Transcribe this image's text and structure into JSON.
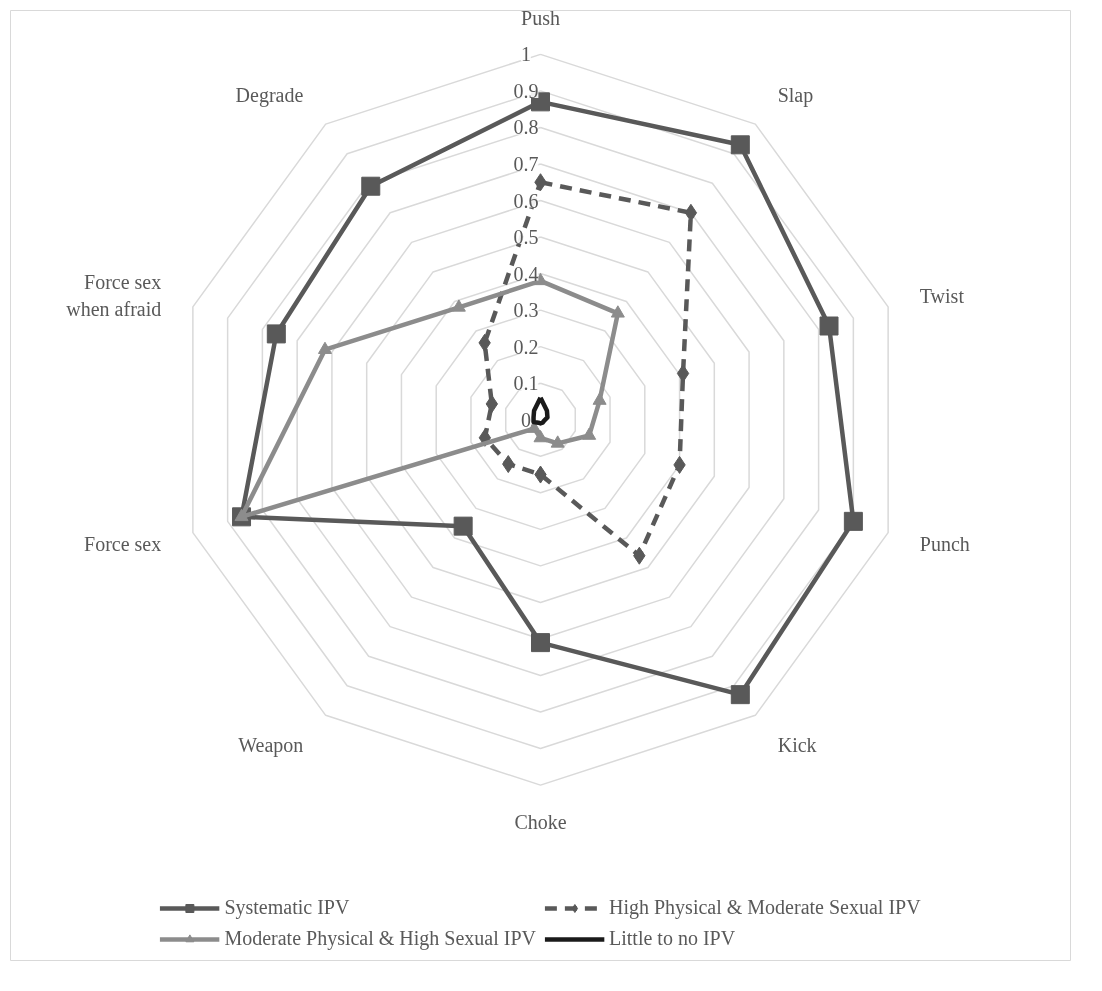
{
  "chart_data": {
    "type": "radar",
    "categories": [
      "Push",
      "Slap",
      "Twist",
      "Punch",
      "Kick",
      "Choke",
      "Weapon",
      "Force sex",
      "Force sex when afraid",
      "Degrade"
    ],
    "ylim": [
      0,
      1
    ],
    "yticks": [
      0,
      0.1,
      0.2,
      0.3,
      0.4,
      0.5,
      0.6,
      0.7,
      0.8,
      0.9,
      1
    ],
    "grid": true,
    "legend": "bottom",
    "series": [
      {
        "name": "Systematic IPV",
        "color": "#595959",
        "marker": "square",
        "line_style": "solid",
        "values": [
          0.87,
          0.93,
          0.83,
          0.9,
          0.93,
          0.61,
          0.36,
          0.86,
          0.76,
          0.79
        ]
      },
      {
        "name": "High Physical & Moderate Sexual IPV",
        "color": "#595959",
        "marker": "diamond",
        "line_style": "dashed",
        "values": [
          0.65,
          0.7,
          0.41,
          0.4,
          0.46,
          0.15,
          0.15,
          0.16,
          0.14,
          0.26
        ]
      },
      {
        "name": "Moderate Physical & High Sexual IPV",
        "color": "#8c8c8c",
        "marker": "triangle",
        "line_style": "solid",
        "values": [
          0.38,
          0.36,
          0.17,
          0.14,
          0.08,
          0.05,
          0.03,
          0.86,
          0.62,
          0.38
        ]
      },
      {
        "name": "Little to no IPV",
        "color": "#1a1a1a",
        "marker": "none",
        "line_style": "solid",
        "values": [
          0.06,
          0.03,
          0.02,
          0.01,
          0.01,
          0.01,
          0.01,
          0.02,
          0.02,
          0.03
        ]
      }
    ]
  }
}
